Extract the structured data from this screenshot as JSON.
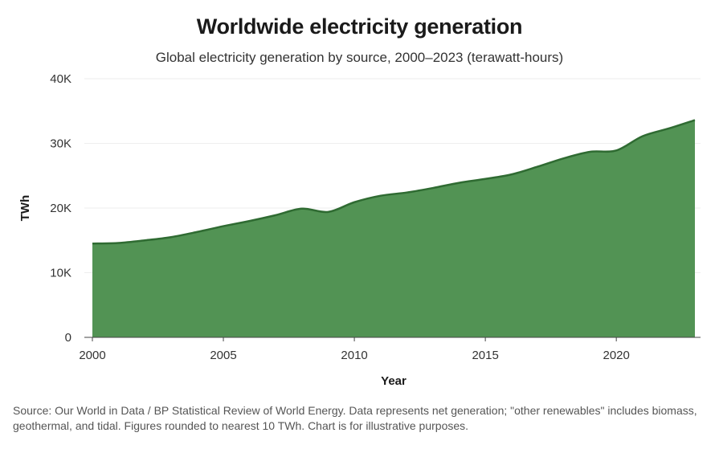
{
  "header": {
    "title": "Worldwide electricity generation",
    "subtitle": "Global electricity generation by source, 2000–2023 (terawatt-hours)"
  },
  "footer": {
    "source": "Source: Our World in Data / BP Statistical Review of World Energy. Data represents net generation; \"other renewables\" includes biomass, geothermal, and tidal. Figures rounded to nearest 10 TWh. Chart is for illustrative purposes."
  },
  "chart_data": {
    "type": "area",
    "title": "Worldwide electricity generation",
    "subtitle": "Global electricity generation by source, 2000–2023 (terawatt-hours)",
    "xlabel": "Year",
    "ylabel": "TWh",
    "x": [
      2000,
      2001,
      2002,
      2003,
      2004,
      2005,
      2006,
      2007,
      2008,
      2009,
      2010,
      2011,
      2012,
      2013,
      2014,
      2015,
      2016,
      2017,
      2018,
      2019,
      2020,
      2021,
      2022,
      2023
    ],
    "series": [
      {
        "values": [
          14500,
          14600,
          15000,
          15500,
          16300,
          17200,
          18000,
          18900,
          19900,
          19400,
          20900,
          21900,
          22400,
          23100,
          23900,
          24500,
          25200,
          26400,
          27700,
          28700,
          28900,
          31100,
          32300,
          33600
        ]
      }
    ],
    "xlim": [
      2000,
      2023
    ],
    "ylim": [
      0,
      40000
    ],
    "xticks": [
      2000,
      2005,
      2010,
      2015,
      2020
    ],
    "xtick_labels": [
      "2000",
      "2005",
      "2010",
      "2015",
      "2020"
    ],
    "yticks": [
      0,
      10000,
      20000,
      30000,
      40000
    ],
    "ytick_labels": [
      "0",
      "10K",
      "20K",
      "30K",
      "40K"
    ],
    "grid": "horizontal",
    "legend": "none",
    "colors": {
      "fill": "#529354",
      "line": "#2f6b32",
      "grid": "#eeeeee",
      "axis": "#444444"
    }
  }
}
